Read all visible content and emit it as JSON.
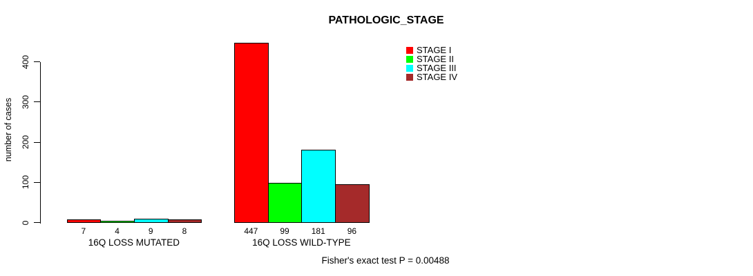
{
  "chart_data": {
    "type": "bar",
    "title": "PATHOLOGIC_STAGE",
    "ylabel": "number of cases",
    "ylim": [
      0,
      450
    ],
    "yticks": [
      0,
      100,
      200,
      300,
      400
    ],
    "grid": false,
    "legend_position": "top-right",
    "series": [
      {
        "name": "STAGE I",
        "color": "#FF0000"
      },
      {
        "name": "STAGE II",
        "color": "#00FF00"
      },
      {
        "name": "STAGE III",
        "color": "#00FFFF"
      },
      {
        "name": "STAGE IV",
        "color": "#A52A2A"
      }
    ],
    "groups": [
      {
        "label": "16Q LOSS MUTATED",
        "values": [
          7,
          4,
          9,
          8
        ]
      },
      {
        "label": "16Q LOSS WILD-TYPE",
        "values": [
          447,
          99,
          181,
          96
        ]
      }
    ],
    "annotation": "Fisher's exact test P = 0.00488"
  }
}
